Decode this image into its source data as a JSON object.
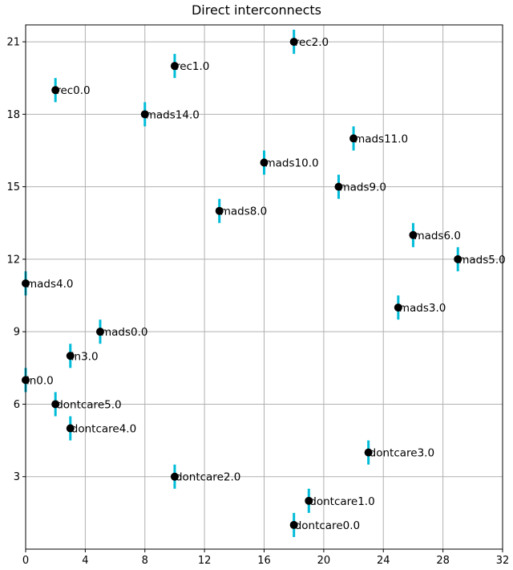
{
  "chart_data": {
    "type": "scatter",
    "title": "Direct interconnects",
    "xlabel": "",
    "ylabel": "",
    "xlim": [
      0,
      32
    ],
    "ylim": [
      0,
      21.7
    ],
    "xticks": [
      0,
      4,
      8,
      12,
      16,
      20,
      24,
      28,
      32
    ],
    "yticks": [
      3,
      6,
      9,
      12,
      15,
      18,
      21
    ],
    "grid": true,
    "error_bar_halfwidth": 0.5,
    "colors": {
      "marker": "#000000",
      "error_bar": "#00bcd8",
      "grid": "#b0b0b0"
    },
    "points": [
      {
        "label": "rec2.0",
        "x": 18,
        "y": 21
      },
      {
        "label": "rec1.0",
        "x": 10,
        "y": 20
      },
      {
        "label": "rec0.0",
        "x": 2,
        "y": 19
      },
      {
        "label": "mads14.0",
        "x": 8,
        "y": 18
      },
      {
        "label": "mads11.0",
        "x": 22,
        "y": 17
      },
      {
        "label": "mads10.0",
        "x": 16,
        "y": 16
      },
      {
        "label": "mads9.0",
        "x": 21,
        "y": 15
      },
      {
        "label": "mads8.0",
        "x": 13,
        "y": 14
      },
      {
        "label": "mads6.0",
        "x": 26,
        "y": 13
      },
      {
        "label": "mads5.0",
        "x": 29,
        "y": 12
      },
      {
        "label": "mads4.0",
        "x": 0,
        "y": 11
      },
      {
        "label": "mads3.0",
        "x": 25,
        "y": 10
      },
      {
        "label": "mads0.0",
        "x": 5,
        "y": 9
      },
      {
        "label": "in3.0",
        "x": 3,
        "y": 8
      },
      {
        "label": "in0.0",
        "x": 0,
        "y": 7
      },
      {
        "label": "dontcare5.0",
        "x": 2,
        "y": 6
      },
      {
        "label": "dontcare4.0",
        "x": 3,
        "y": 5
      },
      {
        "label": "dontcare3.0",
        "x": 23,
        "y": 4
      },
      {
        "label": "dontcare2.0",
        "x": 10,
        "y": 3
      },
      {
        "label": "dontcare1.0",
        "x": 19,
        "y": 2
      },
      {
        "label": "dontcare0.0",
        "x": 18,
        "y": 1
      }
    ]
  }
}
